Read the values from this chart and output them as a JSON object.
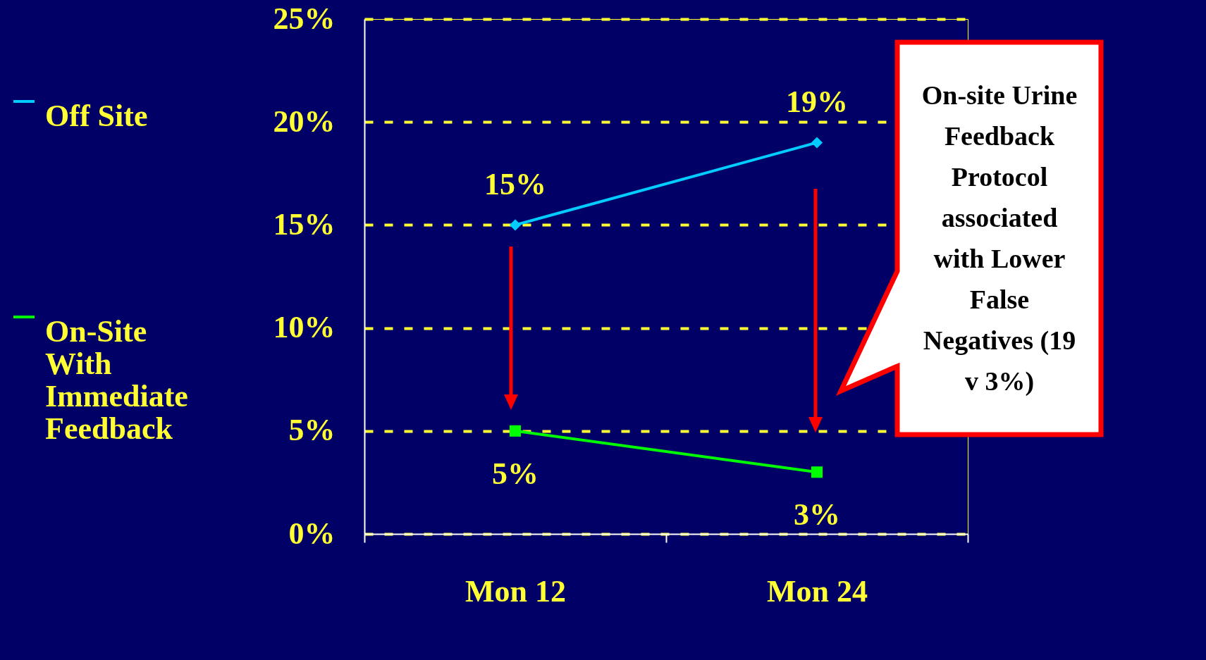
{
  "chart_data": {
    "type": "line",
    "categories": [
      "Mon 12",
      "Mon 24"
    ],
    "series": [
      {
        "name": "Off Site",
        "color": "#00ccff",
        "marker": "diamond",
        "values": [
          15,
          19
        ],
        "value_labels": [
          "15%",
          "19%"
        ]
      },
      {
        "name": "On-Site With Immediate Feedback",
        "color": "#00ff00",
        "marker": "square",
        "values": [
          5,
          3
        ],
        "value_labels": [
          "5%",
          "3%"
        ]
      }
    ],
    "ylim": [
      0,
      25
    ],
    "yticks": [
      {
        "value": 0,
        "label": "0%"
      },
      {
        "value": 5,
        "label": "5%"
      },
      {
        "value": 10,
        "label": "10%"
      },
      {
        "value": 15,
        "label": "15%"
      },
      {
        "value": 20,
        "label": "20%"
      },
      {
        "value": 25,
        "label": "25%"
      }
    ],
    "grid": "y",
    "legend": "left",
    "annotations": [
      "On-site Urine Feedback Protocol associated with Lower False Negatives (19 v 3%)"
    ]
  }
}
